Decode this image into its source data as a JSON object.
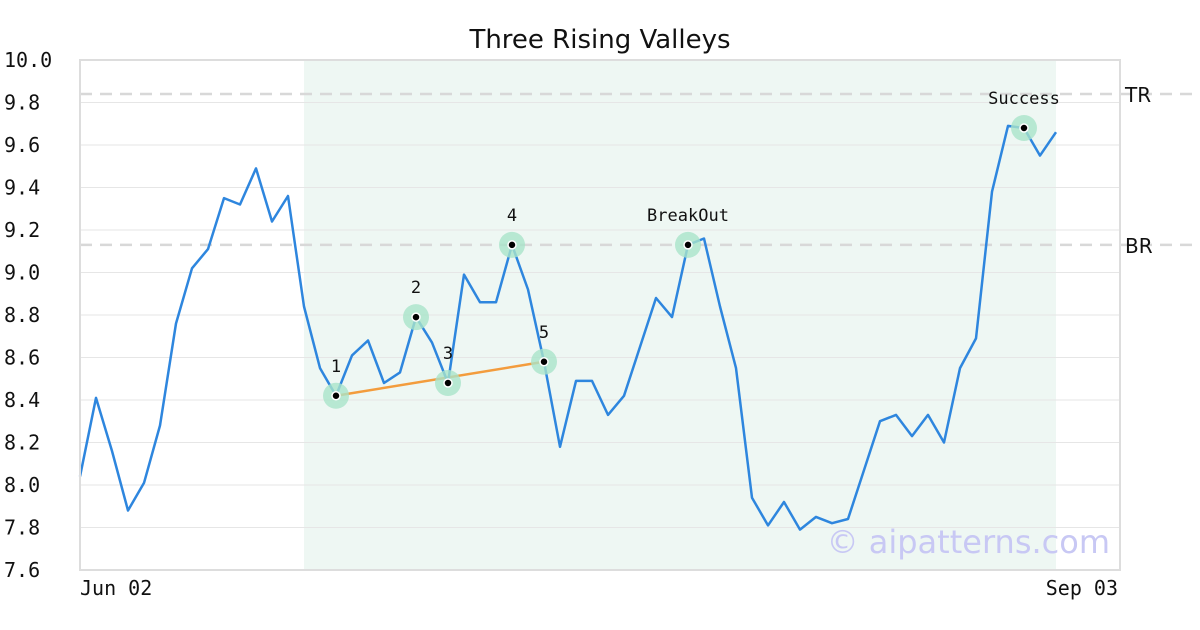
{
  "chart_data": {
    "type": "line",
    "title": "Three Rising Valleys",
    "ylim": [
      7.6,
      10.0
    ],
    "yticks": [
      "10.0",
      "9.8",
      "9.6",
      "9.4",
      "9.2",
      "9.0",
      "8.8",
      "8.6",
      "8.4",
      "8.2",
      "8.0",
      "7.8",
      "7.6"
    ],
    "x_start_label": "Jun 02",
    "x_end_label": "Sep 03",
    "grid": true,
    "colors": {
      "line": "#2e86de",
      "trend": "#f39c3d",
      "highlight": "#eef7f3",
      "marker_halo": "#a9e4c9",
      "level_line": "#d8d8d8",
      "grid": "#e6e6e6"
    },
    "series": [
      {
        "values": [
          8.04,
          8.41,
          8.16,
          7.88,
          8.01,
          8.28,
          8.76,
          9.02,
          9.11,
          9.35,
          9.32,
          9.49,
          9.24,
          9.36,
          8.84,
          8.55,
          8.42,
          8.61,
          8.68,
          8.48,
          8.53,
          8.79,
          8.67,
          8.48,
          8.99,
          8.86,
          8.86,
          9.13,
          8.92,
          8.58,
          8.18,
          8.49,
          8.49,
          8.33,
          8.42,
          8.65,
          8.88,
          8.79,
          9.13,
          9.16,
          8.84,
          8.55,
          7.94,
          7.81,
          7.92,
          7.79,
          7.85,
          7.82,
          7.84,
          8.07,
          8.3,
          8.33,
          8.23,
          8.33,
          8.2,
          8.55,
          8.69,
          9.38,
          9.69,
          9.68,
          9.55,
          9.66
        ]
      }
    ],
    "levels": [
      {
        "label": "TR",
        "value": 9.84
      },
      {
        "label": "BR",
        "value": 9.13
      }
    ],
    "highlight_range": [
      14,
      61
    ],
    "annotations": [
      {
        "label": "1",
        "index": 16,
        "value": 8.42
      },
      {
        "label": "2",
        "index": 21,
        "value": 8.79
      },
      {
        "label": "3",
        "index": 23,
        "value": 8.48
      },
      {
        "label": "4",
        "index": 27,
        "value": 9.13
      },
      {
        "label": "5",
        "index": 29,
        "value": 8.58
      },
      {
        "label": "BreakOut",
        "index": 38,
        "value": 9.13
      },
      {
        "label": "Success",
        "index": 59,
        "value": 9.68
      }
    ],
    "trendline": {
      "from": 0,
      "to": 4
    }
  },
  "watermark": "© aipatterns.com"
}
